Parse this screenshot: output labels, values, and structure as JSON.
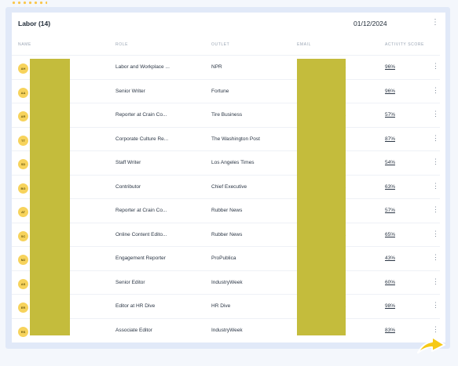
{
  "panel": {
    "title": "Labor (14)",
    "date": "01/12/2024"
  },
  "columns": {
    "name": "NAME",
    "role": "ROLE",
    "outlet": "OUTLET",
    "email": "EMAIL",
    "activity_score": "ACTIVITY SCORE"
  },
  "rows": [
    {
      "initials": "AH",
      "role": "Labor and Workplace ...",
      "outlet": "NPR",
      "score": "96%"
    },
    {
      "initials": "AA",
      "role": "Senior Writer",
      "outlet": "Fortune",
      "score": "96%"
    },
    {
      "initials": "AR",
      "role": "Reporter at Crain Co...",
      "outlet": "Tire Business",
      "score": "57%"
    },
    {
      "initials": "TT",
      "role": "Corporate Culture Re...",
      "outlet": "The Washington Post",
      "score": "87%"
    },
    {
      "initials": "SD",
      "role": "Staff Writer",
      "outlet": "Los Angeles Times",
      "score": "54%"
    },
    {
      "initials": "BG",
      "role": "Contributor",
      "outlet": "Chief Executive",
      "score": "63%"
    },
    {
      "initials": "AT",
      "role": "Reporter at Crain Co...",
      "outlet": "Rubber News",
      "score": "57%"
    },
    {
      "initials": "SC",
      "role": "Online Content Edito...",
      "outlet": "Rubber News",
      "score": "65%"
    },
    {
      "initials": "MJ",
      "role": "Engagement Reporter",
      "outlet": "ProPublica",
      "score": "43%"
    },
    {
      "initials": "AS",
      "role": "Senior Editor",
      "outlet": "IndustryWeek",
      "score": "60%"
    },
    {
      "initials": "ER",
      "role": "Editor at HR Dive",
      "outlet": "HR Dive",
      "score": "98%"
    },
    {
      "initials": "RS",
      "role": "Associate Editor",
      "outlet": "IndustryWeek",
      "score": "83%"
    }
  ],
  "colors": {
    "avatar": "#f7d35c",
    "redaction": "#c4bc3c",
    "accent_arrow": "#f6c915",
    "frame": "#e1e9f8"
  },
  "icons": {
    "kebab": "⋮",
    "email_edge": "."
  }
}
